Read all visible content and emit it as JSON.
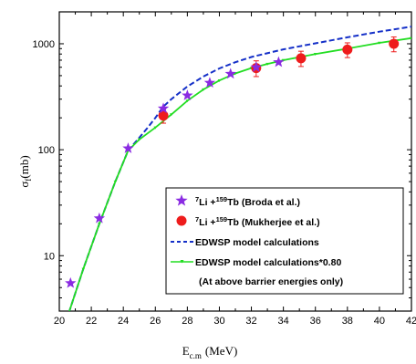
{
  "chart_data": {
    "type": "scatter",
    "xlabel": "E",
    "xlabel_sub": "c.m",
    "xlabel_unit": "(MeV)",
    "ylabel": "σ",
    "ylabel_sub": "f",
    "ylabel_unit": "(mb)",
    "xlim": [
      20,
      42
    ],
    "ylim": [
      3,
      2000
    ],
    "yscale": "log",
    "x_ticks": [
      "20",
      "22",
      "24",
      "26",
      "28",
      "30",
      "32",
      "34",
      "36",
      "38",
      "40",
      "42"
    ],
    "y_ticks": [
      "10",
      "100",
      "1000"
    ],
    "grid": false,
    "legend_position": "bottom-right",
    "series": [
      {
        "name": "⁷Li +¹⁵⁹Tb (Broda et al.)",
        "name_parts": {
          "pre_sup": "7",
          "a": "Li +",
          "mid_sup": "159",
          "b": "Tb (Broda et al.)"
        },
        "marker": "star",
        "color": "#8a2be2",
        "points": [
          [
            20.7,
            5.5
          ],
          [
            22.5,
            22.5
          ],
          [
            24.3,
            103
          ],
          [
            26.5,
            245
          ],
          [
            28.0,
            325
          ],
          [
            29.4,
            428
          ],
          [
            30.7,
            520
          ],
          [
            32.3,
            600
          ],
          [
            33.7,
            670
          ]
        ]
      },
      {
        "name": "⁷Li +¹⁵⁹Tb (Mukherjee et al.)",
        "name_parts": {
          "pre_sup": "7",
          "a": "Li +",
          "mid_sup": "159",
          "b": "Tb (Mukherjee et al.)"
        },
        "marker": "circle",
        "color": "#ee1c1c",
        "points": [
          {
            "x": 26.5,
            "y": 210,
            "err": 32
          },
          {
            "x": 32.3,
            "y": 590,
            "err": 100
          },
          {
            "x": 35.1,
            "y": 730,
            "err": 120
          },
          {
            "x": 38.0,
            "y": 880,
            "err": 140
          },
          {
            "x": 40.9,
            "y": 1000,
            "err": 160
          }
        ]
      },
      {
        "name": "EDWSP model calculations",
        "line": "dashed",
        "color": "#1530c8",
        "points": [
          [
            20.6,
            2.9
          ],
          [
            21.5,
            7.5
          ],
          [
            22.5,
            20
          ],
          [
            23.5,
            50
          ],
          [
            24.3,
            98
          ],
          [
            25.0,
            130
          ],
          [
            25.5,
            160
          ],
          [
            26.0,
            200
          ],
          [
            26.5,
            255
          ],
          [
            27.0,
            300
          ],
          [
            28.0,
            395
          ],
          [
            29.0,
            490
          ],
          [
            30.0,
            585
          ],
          [
            31.0,
            670
          ],
          [
            32.0,
            750
          ],
          [
            34.0,
            885
          ],
          [
            36.0,
            1010
          ],
          [
            38.0,
            1150
          ],
          [
            40.0,
            1300
          ],
          [
            42.0,
            1450
          ]
        ]
      },
      {
        "name": "EDWSP model calculations*0.80",
        "line": "solid",
        "marker": "small-triangle",
        "color": "#22dd22",
        "points": [
          [
            20.6,
            2.9
          ],
          [
            21.5,
            7.5
          ],
          [
            22.5,
            20
          ],
          [
            23.5,
            50
          ],
          [
            24.3,
            98
          ],
          [
            25.0,
            125
          ],
          [
            26.0,
            162
          ],
          [
            27.0,
            215
          ],
          [
            28.0,
            290
          ],
          [
            29.0,
            370
          ],
          [
            30.0,
            450
          ],
          [
            31.0,
            525
          ],
          [
            32.0,
            590
          ],
          [
            33.0,
            645
          ],
          [
            34.0,
            700
          ],
          [
            36.0,
            800
          ],
          [
            38.0,
            900
          ],
          [
            40.0,
            1020
          ],
          [
            42.0,
            1130
          ]
        ]
      }
    ],
    "legend_note": "(At above barrier energies only)"
  }
}
